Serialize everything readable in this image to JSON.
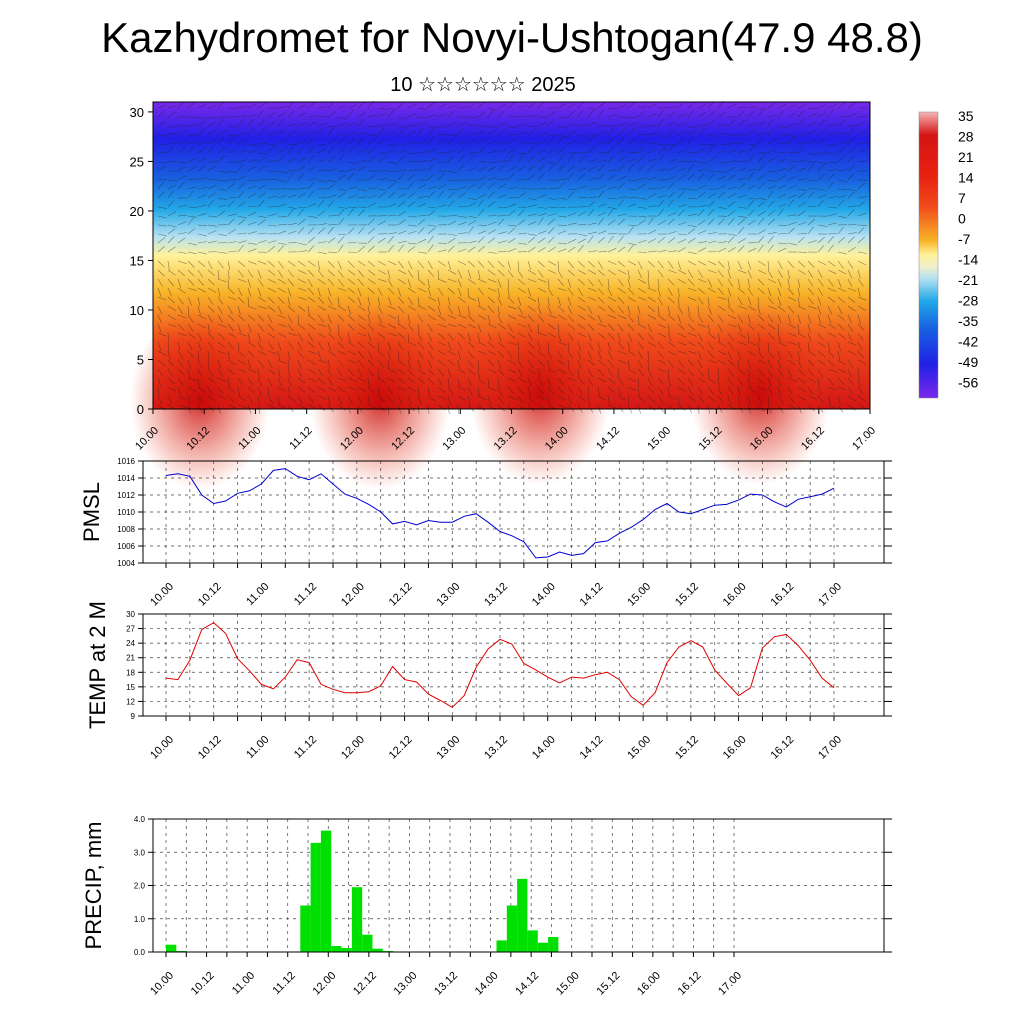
{
  "header": {
    "title": "Kazhydromet for Novyi-Ushtogan(47.9 48.8)",
    "subtitle": "10 ☆☆☆☆☆☆ 2025"
  },
  "chart_data": [
    {
      "type": "heatmap",
      "name": "temperature-height-section",
      "x_ticks": [
        "10.00",
        "10.12",
        "11.00",
        "11.12",
        "12.00",
        "12.12",
        "13.00",
        "13.12",
        "14.00",
        "14.12",
        "15.00",
        "15.12",
        "16.00",
        "16.12",
        "17.00"
      ],
      "y_ticks": [
        0,
        5,
        10,
        15,
        20,
        25,
        30
      ],
      "ylim": [
        0,
        31
      ],
      "colorbar_labels": [
        "35",
        "28",
        "21",
        "14",
        "7",
        "0",
        "-7",
        "-14",
        "-21",
        "-28",
        "-35",
        "-42",
        "-49",
        "-56"
      ],
      "colors": [
        "#f4b4b4",
        "#d41515",
        "#f04a1a",
        "#f8b428",
        "#fff29a",
        "#b8e2f2",
        "#22a8e8",
        "#1860e0",
        "#2020e6",
        "#7a28ea"
      ],
      "grid": false
    },
    {
      "type": "line",
      "name": "pmsl",
      "ylabel": "PMSL",
      "y_ticks": [
        1004,
        1006,
        1008,
        1010,
        1012,
        1014,
        1016
      ],
      "ylim": [
        1004,
        1016
      ],
      "x_ticks": [
        "10.00",
        "10.12",
        "11.00",
        "11.12",
        "12.00",
        "12.12",
        "13.00",
        "13.12",
        "14.00",
        "14.12",
        "15.00",
        "15.12",
        "16.00",
        "16.12",
        "17.00"
      ],
      "color": "#0000d0",
      "values": [
        1014.3,
        1014.5,
        1014.2,
        1012,
        1011,
        1011.3,
        1012.2,
        1012.5,
        1013.3,
        1014.9,
        1015.1,
        1014.2,
        1013.8,
        1014.5,
        1013.3,
        1012.1,
        1011.6,
        1010.9,
        1010,
        1008.6,
        1008.9,
        1008.5,
        1009,
        1008.8,
        1008.8,
        1009.5,
        1009.8,
        1008.8,
        1007.7,
        1007.2,
        1006.5,
        1004.6,
        1004.7,
        1005.3,
        1004.9,
        1005.1,
        1006.4,
        1006.6,
        1007.5,
        1008.2,
        1009.1,
        1010.3,
        1011,
        1010,
        1009.8,
        1010.3,
        1010.8,
        1010.9,
        1011.4,
        1012.1,
        1012,
        1011.2,
        1010.6,
        1011.5,
        1011.8,
        1012.1,
        1012.8
      ],
      "grid": true
    },
    {
      "type": "line",
      "name": "temp-2m",
      "ylabel": "TEMP at 2 M",
      "y_ticks": [
        9,
        12,
        15,
        18,
        21,
        24,
        27,
        30
      ],
      "ylim": [
        9,
        30
      ],
      "x_ticks": [
        "10.00",
        "10.12",
        "11.00",
        "11.12",
        "12.00",
        "12.12",
        "13.00",
        "13.12",
        "14.00",
        "14.12",
        "15.00",
        "15.12",
        "16.00",
        "16.12",
        "17.00"
      ],
      "color": "#e00000",
      "values": [
        16.8,
        16.5,
        20.5,
        26.8,
        28.2,
        26,
        20.8,
        18.3,
        15.5,
        14.6,
        17,
        20.6,
        20,
        15.5,
        14.5,
        13.8,
        13.8,
        14,
        15.2,
        19.2,
        16.5,
        16,
        13.5,
        12.2,
        10.8,
        13.2,
        19,
        22.8,
        24.8,
        23.8,
        19.8,
        18.5,
        17,
        15.8,
        17,
        16.8,
        17.5,
        18,
        16.5,
        13,
        11.2,
        13.8,
        20,
        23.2,
        24.5,
        23.2,
        18.5,
        15.8,
        13.2,
        14.8,
        23,
        25.3,
        25.8,
        23.5,
        20.5,
        16.8,
        14.8
      ],
      "grid": true
    },
    {
      "type": "bar",
      "name": "precip",
      "ylabel": "PRECIP, mm",
      "y_ticks": [
        "0.0",
        "1.0",
        "2.0",
        "3.0",
        "4.0"
      ],
      "ylim": [
        0,
        4
      ],
      "x_ticks": [
        "10.00",
        "10.12",
        "11.00",
        "11.12",
        "12.00",
        "12.12",
        "13.00",
        "13.12",
        "14.00",
        "14.12",
        "15.00",
        "15.12",
        "16.00",
        "16.12",
        "17.00"
      ],
      "color": "#00e000",
      "values": [
        0.22,
        0.03,
        0,
        0,
        0,
        0,
        0,
        0,
        0,
        0,
        0,
        0,
        0,
        1.4,
        3.28,
        3.65,
        0.18,
        0.12,
        1.95,
        0.52,
        0.1,
        0.03,
        0,
        0,
        0,
        0,
        0,
        0,
        0,
        0,
        0,
        0,
        0.35,
        1.4,
        2.2,
        0.65,
        0.28,
        0.45,
        0,
        0,
        0,
        0,
        0,
        0,
        0,
        0,
        0,
        0,
        0,
        0,
        0,
        0,
        0,
        0,
        0,
        0
      ],
      "grid": true
    }
  ]
}
